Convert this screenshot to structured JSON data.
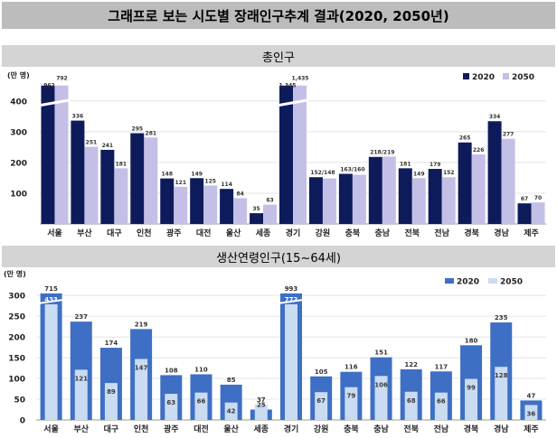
{
  "main_title": "그래프로 보는 시도별 장래인구추계 결과(2020, 2050년)",
  "chart_data": [
    {
      "type": "bar",
      "title": "총인구",
      "unit_label": "(만 명)",
      "categories": [
        "서울",
        "부산",
        "대구",
        "인천",
        "광주",
        "대전",
        "울산",
        "세종",
        "경기",
        "강원",
        "충북",
        "충남",
        "전북",
        "전남",
        "경북",
        "경남",
        "제주"
      ],
      "series": [
        {
          "name": "2020",
          "color": "#0e1b5b",
          "values": [
            962,
            336,
            241,
            295,
            148,
            149,
            114,
            35,
            1345,
            152,
            163,
            218,
            181,
            179,
            265,
            334,
            67
          ]
        },
        {
          "name": "2050",
          "color": "#c3bfe6",
          "values": [
            792,
            251,
            181,
            281,
            121,
            125,
            84,
            63,
            1435,
            148,
            160,
            219,
            149,
            152,
            226,
            277,
            70
          ]
        }
      ],
      "data_labels": [
        "962",
        "792",
        "336",
        "251",
        "241",
        "181",
        "295",
        "281",
        "148",
        "121",
        "149",
        "125",
        "114",
        "84",
        "35",
        "63",
        "1,345",
        "1,435",
        "152/148",
        "163/160",
        "218/219",
        "181",
        "149",
        "179",
        "152",
        "265",
        "226",
        "334",
        "277",
        "67",
        "70"
      ],
      "yticks": [
        "100",
        "200",
        "300",
        "400"
      ],
      "ylim": [
        0,
        450
      ],
      "axis_break": true,
      "legend_position": "top-right"
    },
    {
      "type": "bar",
      "title": "생산연령인구(15~64세)",
      "unit_label": "(만 명)",
      "categories": [
        "서울",
        "부산",
        "대구",
        "인천",
        "광주",
        "대전",
        "울산",
        "세종",
        "경기",
        "강원",
        "충북",
        "충남",
        "전북",
        "전남",
        "경북",
        "경남",
        "제주"
      ],
      "series": [
        {
          "name": "2020",
          "color": "#3e6fc4",
          "values": [
            715,
            237,
            174,
            219,
            108,
            110,
            85,
            25,
            993,
            105,
            116,
            151,
            122,
            117,
            180,
            235,
            47
          ]
        },
        {
          "name": "2050",
          "color": "#c9dcf2",
          "values": [
            433,
            121,
            89,
            147,
            63,
            66,
            42,
            37,
            772,
            67,
            79,
            106,
            68,
            66,
            99,
            128,
            36
          ]
        }
      ],
      "data_labels": [
        "715",
        "433",
        "237",
        "121",
        "174",
        "89",
        "219",
        "147",
        "108",
        "63",
        "110",
        "66",
        "85",
        "42",
        "25",
        "37",
        "993",
        "772",
        "105",
        "67",
        "116",
        "79",
        "151",
        "106",
        "122",
        "68",
        "117",
        "66",
        "180",
        "99",
        "235",
        "128",
        "47",
        "36"
      ],
      "yticks": [
        "0",
        "50",
        "100",
        "150",
        "200",
        "250",
        "300"
      ],
      "ylim": [
        0,
        320
      ],
      "axis_break": true,
      "overlap": true,
      "legend_position": "top-right"
    }
  ]
}
